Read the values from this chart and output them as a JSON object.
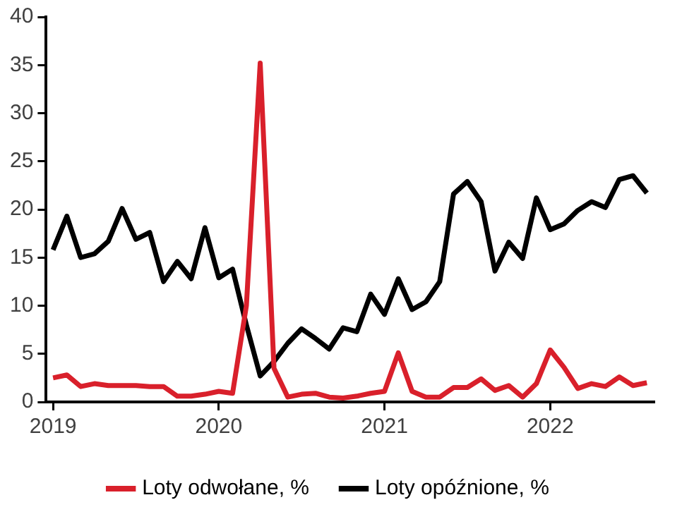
{
  "chart_data": {
    "type": "line",
    "categories": [
      "2019",
      null,
      null,
      null,
      null,
      null,
      null,
      null,
      null,
      null,
      null,
      null,
      "2020",
      null,
      null,
      null,
      null,
      null,
      null,
      null,
      null,
      null,
      null,
      null,
      "2021",
      null,
      null,
      null,
      null,
      null,
      null,
      null,
      null,
      null,
      null,
      null,
      "2022",
      null,
      null,
      null,
      null,
      null,
      null,
      null
    ],
    "series": [
      {
        "name": "Loty odwołane, %",
        "color": "#d9202b",
        "values": [
          2.5,
          2.8,
          1.6,
          1.9,
          1.7,
          1.7,
          1.7,
          1.6,
          1.6,
          0.6,
          0.6,
          0.8,
          1.1,
          0.9,
          10,
          35.2,
          3.5,
          0.5,
          0.8,
          0.9,
          0.5,
          0.4,
          0.6,
          0.9,
          1.1,
          5.1,
          1.1,
          0.5,
          0.5,
          1.5,
          1.5,
          2.4,
          1.2,
          1.7,
          0.5,
          1.9,
          5.4,
          3.6,
          1.4,
          1.9,
          1.6,
          2.6,
          1.7,
          2.0
        ]
      },
      {
        "name": "Loty opóźnione, %",
        "color": "#000000",
        "values": [
          15.8,
          19.3,
          15.0,
          15.4,
          16.7,
          20.1,
          16.9,
          17.6,
          12.5,
          14.6,
          12.8,
          18.1,
          12.9,
          13.8,
          8,
          2.7,
          4.2,
          6.1,
          7.6,
          6.6,
          5.5,
          7.7,
          7.3,
          11.2,
          9.1,
          12.8,
          9.6,
          10.4,
          12.5,
          21.6,
          22.9,
          20.8,
          13.6,
          16.6,
          14.9,
          21.2,
          17.9,
          18.5,
          19.9,
          20.8,
          20.2,
          23.1,
          23.5,
          21.7
        ]
      }
    ],
    "ylim": [
      0,
      40
    ],
    "yticks": [
      0,
      5,
      10,
      15,
      20,
      25,
      30,
      35,
      40
    ],
    "grid": false,
    "legend": "bottom",
    "marker": "none",
    "line_style": "solid"
  }
}
